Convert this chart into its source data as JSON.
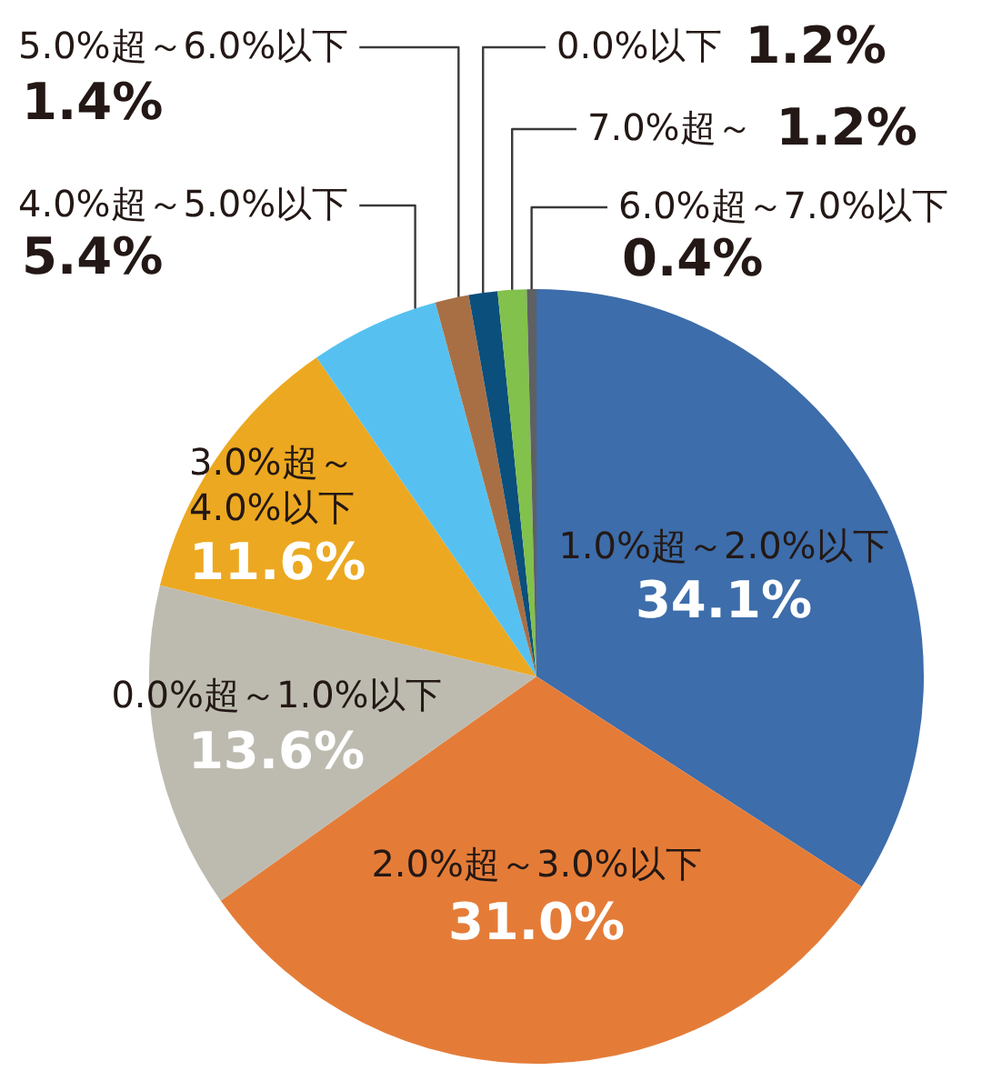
{
  "chart_data": {
    "type": "pie",
    "categories": [
      "1.0%超～2.0%以下",
      "2.0%超～3.0%以下",
      "0.0%超～1.0%以下",
      "3.0%超～4.0%以下",
      "4.0%超～5.0%以下",
      "5.0%超～6.0%以下",
      "0.0%以下",
      "7.0%超～",
      "6.0%超～7.0%以下"
    ],
    "values": [
      34.1,
      31.0,
      13.6,
      11.6,
      5.4,
      1.4,
      1.2,
      1.2,
      0.4
    ],
    "colors": [
      "#3d6daa",
      "#e47c38",
      "#bdbbb0",
      "#eca820",
      "#56c1f0",
      "#a86f45",
      "#0b4f7c",
      "#82c14b",
      "#5f6062"
    ],
    "value_labels": [
      "34.1%",
      "31.0%",
      "13.6%",
      "11.6%",
      "5.4%",
      "1.4%",
      "1.2%",
      "1.2%",
      "0.4%"
    ]
  }
}
